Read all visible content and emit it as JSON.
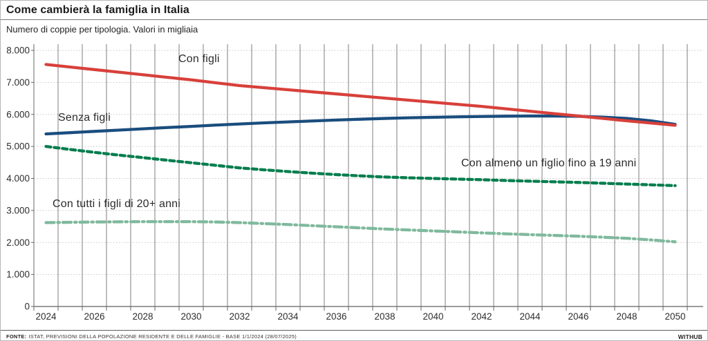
{
  "header": {
    "title": "Come cambierà la famiglia in Italia",
    "subtitle": "Numero di coppie per tipologia. Valori in migliaia"
  },
  "footer": {
    "source_label": "FONTE:",
    "source_text": "ISTAT, PREVISIONI DELLA POPOLAZIONE RESIDENTE E DELLE FAMIGLIE - BASE 1/1/2024 (28/07/2025)",
    "brand": "WITHUB"
  },
  "chart_data": {
    "type": "line",
    "title": "Come cambierà la famiglia in Italia",
    "subtitle": "Numero di coppie per tipologia. Valori in migliaia",
    "unit": "migliaia di coppie",
    "x": [
      2024,
      2025,
      2026,
      2027,
      2028,
      2029,
      2030,
      2031,
      2032,
      2033,
      2034,
      2035,
      2036,
      2037,
      2038,
      2039,
      2040,
      2041,
      2042,
      2043,
      2044,
      2045,
      2046,
      2047,
      2048,
      2049,
      2050
    ],
    "x_tick_labels": [
      "2024",
      "2026",
      "2028",
      "2030",
      "2032",
      "2034",
      "2036",
      "2038",
      "2040",
      "2042",
      "2044",
      "2046",
      "2048",
      "2050"
    ],
    "y_axis": {
      "min": 0,
      "max": 8000,
      "step": 1000,
      "tick_labels": [
        "0",
        "1.000",
        "2.000",
        "3.000",
        "4.000",
        "5.000",
        "6.000",
        "7.000",
        "8.000"
      ]
    },
    "grid": {
      "vertical": "solid-per-year",
      "horizontal": "dotted-per-1000"
    },
    "legend_position": "inline-labels",
    "series": [
      {
        "name": "Con figli",
        "color": "#d8403a",
        "line_style": "solid",
        "values": [
          7560,
          7480,
          7400,
          7320,
          7240,
          7160,
          7080,
          6990,
          6900,
          6835,
          6770,
          6705,
          6640,
          6575,
          6510,
          6445,
          6380,
          6315,
          6250,
          6175,
          6100,
          6025,
          5950,
          5875,
          5800,
          5730,
          5660
        ]
      },
      {
        "name": "Senza figli",
        "color": "#1a4d7e",
        "line_style": "solid",
        "values": [
          5390,
          5430,
          5470,
          5510,
          5550,
          5590,
          5625,
          5665,
          5700,
          5735,
          5765,
          5795,
          5825,
          5850,
          5875,
          5895,
          5910,
          5925,
          5935,
          5945,
          5950,
          5950,
          5940,
          5915,
          5875,
          5800,
          5690
        ]
      },
      {
        "name": "Con almeno un figlio fino a 19 anni",
        "color": "#067d4e",
        "line_style": "dashed",
        "values": [
          5000,
          4905,
          4815,
          4730,
          4650,
          4570,
          4490,
          4410,
          4330,
          4270,
          4215,
          4165,
          4120,
          4080,
          4045,
          4020,
          4000,
          3980,
          3960,
          3935,
          3915,
          3895,
          3875,
          3850,
          3825,
          3800,
          3775
        ]
      },
      {
        "name": "Con tutti i figli di 20+ anni",
        "color": "#7fb99d",
        "line_style": "dash-dot",
        "values": [
          2620,
          2630,
          2640,
          2645,
          2650,
          2650,
          2650,
          2640,
          2620,
          2590,
          2560,
          2525,
          2490,
          2455,
          2420,
          2390,
          2360,
          2330,
          2300,
          2270,
          2245,
          2220,
          2195,
          2165,
          2130,
          2080,
          2020
        ]
      }
    ]
  }
}
